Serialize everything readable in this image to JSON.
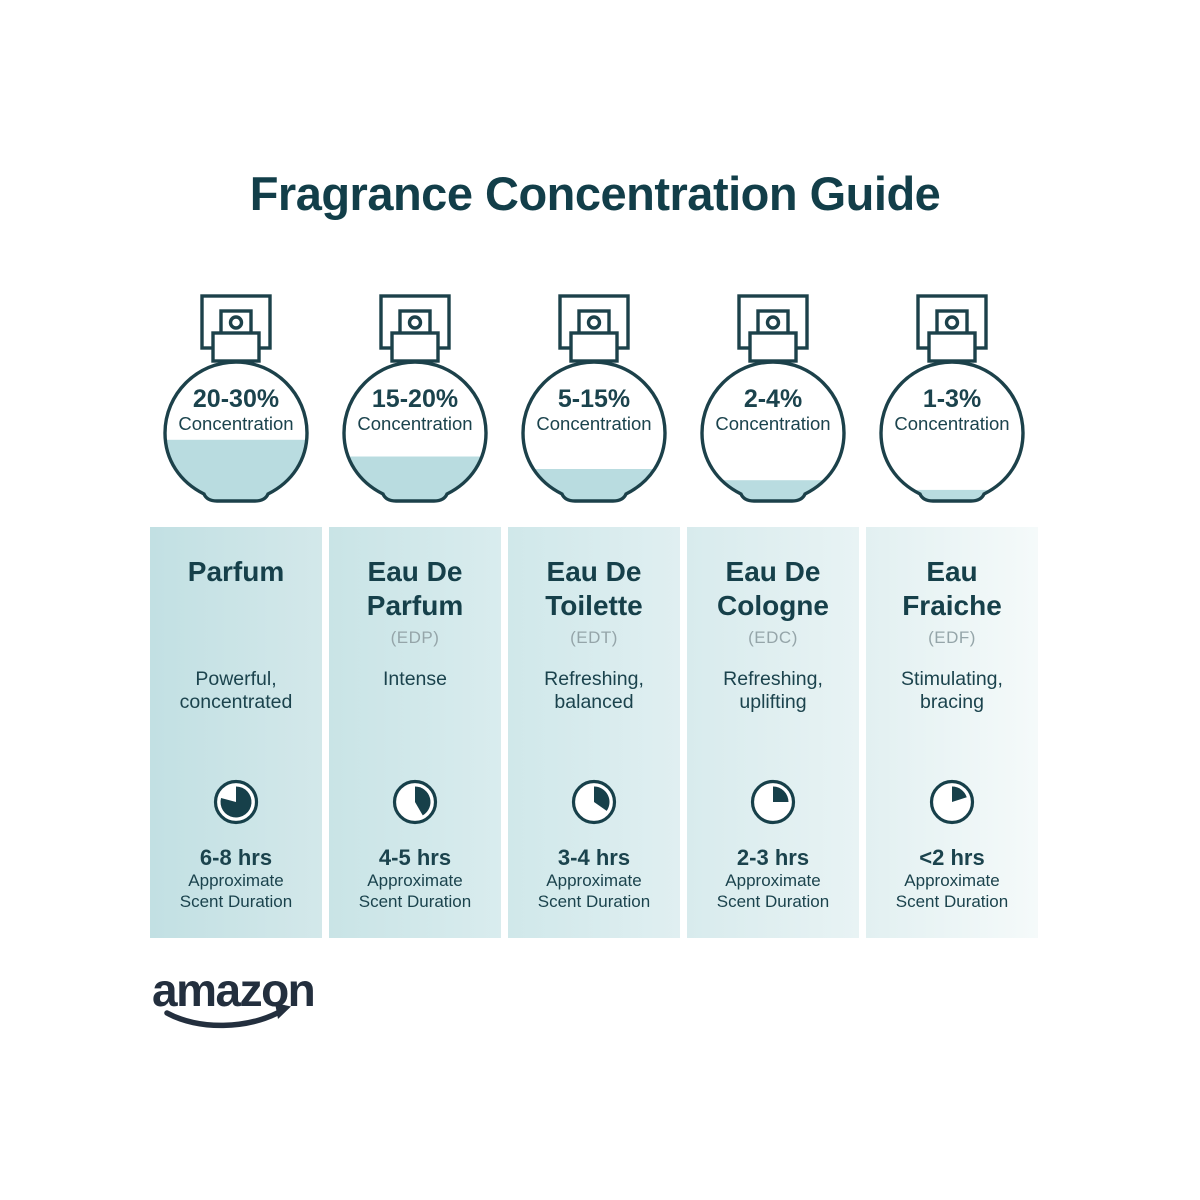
{
  "title": "Fragrance Concentration Guide",
  "brand": {
    "logo_text": "amazon"
  },
  "colors": {
    "title_ink": "#123e49",
    "text_ink": "#1b434d",
    "outline_ink": "#1c414a",
    "clock_ink": "#17404a",
    "muted_gray": "#95a5a9",
    "liquid": "#b9dce0",
    "logo_navy": "#232f3e",
    "background": "#ffffff"
  },
  "columns": [
    {
      "concentration": "20-30%",
      "concentration_label": "Concentration",
      "fill_percent": 44,
      "name_lines": [
        "Parfum",
        ""
      ],
      "abbr": "",
      "desc_lines": [
        "Powerful,",
        "concentrated"
      ],
      "clock_fill_deg": 285,
      "duration": "6-8 hrs",
      "caption_lines": [
        "Approximate",
        "Scent Duration"
      ],
      "panel_from": "#c2e0e3",
      "panel_to": "#d3e8ea"
    },
    {
      "concentration": "15-20%",
      "concentration_label": "Concentration",
      "fill_percent": 32,
      "name_lines": [
        "Eau De",
        "Parfum"
      ],
      "abbr": "(EDP)",
      "desc_lines": [
        "Intense",
        ""
      ],
      "clock_fill_deg": 150,
      "duration": "4-5 hrs",
      "caption_lines": [
        "Approximate",
        "Scent Duration"
      ],
      "panel_from": "#c9e4e6",
      "panel_to": "#d9ecee"
    },
    {
      "concentration": "5-15%",
      "concentration_label": "Concentration",
      "fill_percent": 23,
      "name_lines": [
        "Eau De",
        "Toilette"
      ],
      "abbr": "(EDT)",
      "desc_lines": [
        "Refreshing,",
        "balanced"
      ],
      "clock_fill_deg": 125,
      "duration": "3-4 hrs",
      "caption_lines": [
        "Approximate",
        "Scent Duration"
      ],
      "panel_from": "#d0e8ea",
      "panel_to": "#e0eff1"
    },
    {
      "concentration": "2-4%",
      "concentration_label": "Concentration",
      "fill_percent": 15,
      "name_lines": [
        "Eau De",
        "Cologne"
      ],
      "abbr": "(EDC)",
      "desc_lines": [
        "Refreshing,",
        "uplifting"
      ],
      "clock_fill_deg": 90,
      "duration": "2-3 hrs",
      "caption_lines": [
        "Approximate",
        "Scent Duration"
      ],
      "panel_from": "#d8ebed",
      "panel_to": "#e8f3f4"
    },
    {
      "concentration": "1-3%",
      "concentration_label": "Concentration",
      "fill_percent": 8,
      "name_lines": [
        "Eau",
        "Fraiche"
      ],
      "abbr": "(EDF)",
      "desc_lines": [
        "Stimulating,",
        "bracing"
      ],
      "clock_fill_deg": 72,
      "duration": "<2 hrs",
      "caption_lines": [
        "Approximate",
        "Scent Duration"
      ],
      "panel_from": "#e2f0f1",
      "panel_to": "#f5fafa"
    }
  ]
}
